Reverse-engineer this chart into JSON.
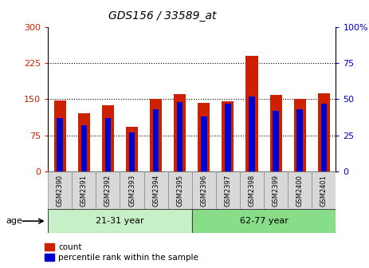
{
  "title": "GDS156 / 33589_at",
  "samples": [
    "GSM2390",
    "GSM2391",
    "GSM2392",
    "GSM2393",
    "GSM2394",
    "GSM2395",
    "GSM2396",
    "GSM2397",
    "GSM2398",
    "GSM2399",
    "GSM2400",
    "GSM2401"
  ],
  "counts": [
    148,
    120,
    138,
    92,
    150,
    160,
    143,
    145,
    240,
    158,
    150,
    162
  ],
  "percentiles": [
    37,
    32,
    37,
    27,
    43,
    48,
    38,
    47,
    52,
    42,
    43,
    47
  ],
  "groups": [
    {
      "label": "21-31 year",
      "start": 0,
      "end": 6
    },
    {
      "label": "62-77 year",
      "start": 6,
      "end": 12
    }
  ],
  "group_colors": [
    "#c8f0c8",
    "#88dd88"
  ],
  "bar_color_red": "#cc2000",
  "bar_color_blue": "#0000cc",
  "left_ylim": [
    0,
    300
  ],
  "right_ylim": [
    0,
    100
  ],
  "left_yticks": [
    0,
    75,
    150,
    225,
    300
  ],
  "right_yticks": [
    0,
    25,
    50,
    75,
    100
  ],
  "right_yticklabels": [
    "0",
    "25",
    "50",
    "75",
    "100%"
  ],
  "left_ycolor": "#cc2000",
  "right_ycolor": "#0000cc",
  "legend_count_label": "count",
  "legend_percentile_label": "percentile rank within the sample",
  "age_label": "age",
  "bar_width": 0.5,
  "blue_bar_width": 0.25
}
